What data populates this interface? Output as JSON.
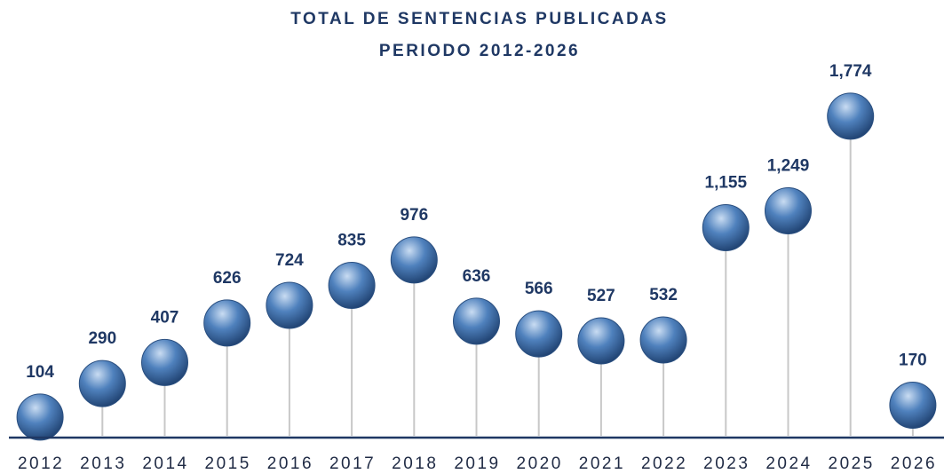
{
  "chart_data": {
    "type": "lollipop",
    "title": "TOTAL DE SENTENCIAS PUBLICADAS",
    "subtitle": "PERIODO 2012-2026",
    "categories": [
      "2012",
      "2013",
      "2014",
      "2015",
      "2016",
      "2017",
      "2018",
      "2019",
      "2020",
      "2021",
      "2022",
      "2023",
      "2024",
      "2025",
      "2026"
    ],
    "values": [
      104,
      290,
      407,
      626,
      724,
      835,
      976,
      636,
      566,
      527,
      532,
      1155,
      1249,
      1774,
      170
    ],
    "value_labels": [
      "104",
      "290",
      "407",
      "626",
      "724",
      "835",
      "976",
      "636",
      "566",
      "527",
      "532",
      "1,155",
      "1,249",
      "1,774",
      "170"
    ],
    "color": "#4f81bd",
    "ylim": [
      0,
      2000
    ]
  }
}
